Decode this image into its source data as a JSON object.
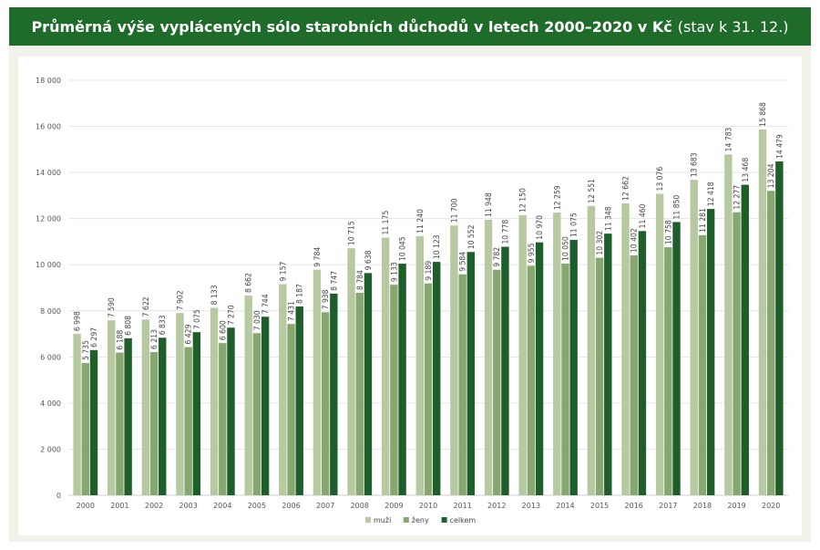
{
  "title": {
    "main": "Průměrná výše vyplácených sólo starobních důchodů v letech 2000–2020 v Kč",
    "sub": "(stav k 31. 12.)"
  },
  "colors": {
    "muzi": "#b7c9a0",
    "zeny": "#86a870",
    "celkem": "#1e5e2a",
    "grid": "#e6e6e6",
    "title_bg": "#1e6b2a"
  },
  "chart_data": {
    "type": "bar",
    "title": "Průměrná výše vyplácených sólo starobních důchodů v letech 2000–2020 v Kč (stav k 31. 12.)",
    "xlabel": "",
    "ylabel": "",
    "ylim": [
      0,
      18000
    ],
    "yticks": [
      0,
      2000,
      4000,
      6000,
      8000,
      10000,
      12000,
      14000,
      16000,
      18000
    ],
    "ytick_labels": [
      "0",
      "2 000",
      "4 000",
      "6 000",
      "8 000",
      "10 000",
      "12 000",
      "14 000",
      "16 000",
      "18 000"
    ],
    "grid": true,
    "legend_position": "bottom-center",
    "categories": [
      "2000",
      "2001",
      "2002",
      "2003",
      "2004",
      "2005",
      "2006",
      "2007",
      "2008",
      "2009",
      "2010",
      "2011",
      "2012",
      "2013",
      "2014",
      "2015",
      "2016",
      "2017",
      "2018",
      "2019",
      "2020"
    ],
    "series": [
      {
        "name": "muži",
        "values": [
          6998,
          7590,
          7622,
          7902,
          8133,
          8662,
          9157,
          9784,
          10715,
          11175,
          11240,
          11700,
          11948,
          12150,
          12259,
          12551,
          12662,
          13076,
          13683,
          14783,
          15868
        ]
      },
      {
        "name": "ženy",
        "values": [
          5735,
          6188,
          6213,
          6429,
          6600,
          7030,
          7431,
          7938,
          8784,
          9133,
          9189,
          9584,
          9782,
          9955,
          10050,
          10302,
          10402,
          10758,
          11281,
          12277,
          13204
        ]
      },
      {
        "name": "celkem",
        "values": [
          6297,
          6808,
          6833,
          7075,
          7270,
          7744,
          8187,
          8747,
          9638,
          10045,
          10123,
          10552,
          10778,
          10970,
          11075,
          11348,
          11460,
          11850,
          12418,
          13468,
          14479
        ]
      }
    ]
  }
}
